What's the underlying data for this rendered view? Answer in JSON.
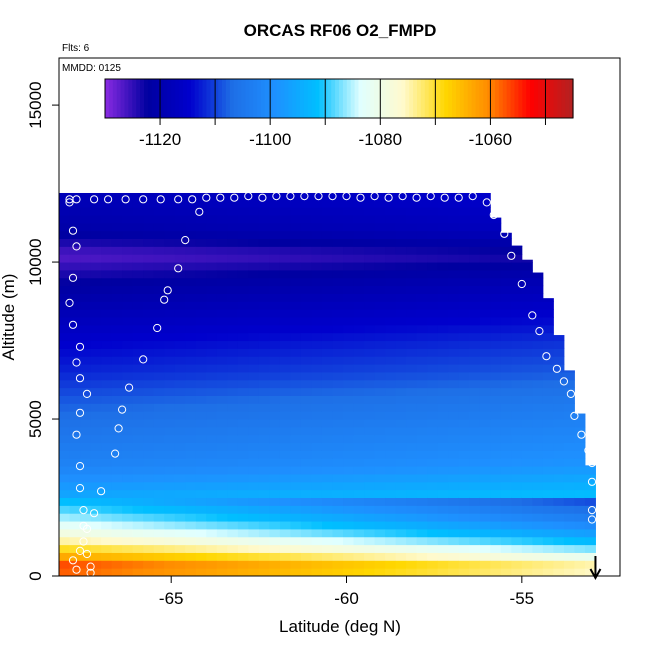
{
  "chart_data": {
    "type": "heatmap",
    "title": "ORCAS RF06 O2_FMPD",
    "flights_note": "Flts: 6",
    "date_note": "MMDD: 0125",
    "xlabel": "Latitude (deg N)",
    "ylabel": "Altitude (m)",
    "xlim": [
      -68.2,
      -52.2
    ],
    "ylim": [
      0,
      16500
    ],
    "x_ticks": [
      -65,
      -60,
      -55
    ],
    "x_tick_labels": [
      "-65",
      "-60",
      "-55"
    ],
    "y_ticks": [
      0,
      5000,
      10000,
      15000
    ],
    "y_tick_labels": [
      "0",
      "5000",
      "10000",
      "15000"
    ],
    "colorbar": {
      "ticks": [
        -1120,
        -1100,
        -1080,
        -1060
      ],
      "tick_labels": [
        "-1120",
        "-1100",
        "-1080",
        "-1060"
      ],
      "range": [
        -1130,
        -1045
      ],
      "colors": [
        "#8a2be2",
        "#0000a0",
        "#0000cd",
        "#1e6fe6",
        "#1e90ff",
        "#00bfff",
        "#e0ffff",
        "#fffacd",
        "#ffd700",
        "#ff8c00",
        "#ff0000",
        "#b22222"
      ]
    },
    "profile_ceiling": [
      [
        -68.0,
        12200
      ],
      [
        -56.0,
        12200
      ],
      [
        -55.8,
        11500
      ],
      [
        -55.5,
        11000
      ],
      [
        -55.2,
        10600
      ],
      [
        -54.8,
        10000
      ],
      [
        -54.5,
        9600
      ],
      [
        -54.2,
        8700
      ],
      [
        -54.0,
        7900
      ],
      [
        -53.8,
        7000
      ],
      [
        -53.6,
        6400
      ],
      [
        -53.4,
        5400
      ],
      [
        -53.2,
        4500
      ],
      [
        -53.0,
        3200
      ],
      [
        -52.9,
        0
      ]
    ],
    "altitude_profile": [
      [
        0,
        -1060
      ],
      [
        300,
        -1055
      ],
      [
        600,
        -1063
      ],
      [
        900,
        -1070
      ],
      [
        1300,
        -1078
      ],
      [
        1800,
        -1085
      ],
      [
        2500,
        -1093
      ],
      [
        3500,
        -1100
      ],
      [
        4500,
        -1103
      ],
      [
        5500,
        -1106
      ],
      [
        6500,
        -1110
      ],
      [
        7500,
        -1113
      ],
      [
        8500,
        -1117
      ],
      [
        9500,
        -1121
      ],
      [
        10200,
        -1125
      ],
      [
        11000,
        -1119
      ],
      [
        12200,
        -1116
      ]
    ],
    "flight_track": [
      [
        -67.7,
        200
      ],
      [
        -67.8,
        500
      ],
      [
        -67.6,
        800
      ],
      [
        -67.5,
        1100
      ],
      [
        -67.4,
        1500
      ],
      [
        -67.2,
        2000
      ],
      [
        -67.0,
        2700
      ],
      [
        -66.6,
        3900
      ],
      [
        -66.5,
        4700
      ],
      [
        -66.4,
        5300
      ],
      [
        -66.2,
        6000
      ],
      [
        -65.8,
        6900
      ],
      [
        -65.4,
        7900
      ],
      [
        -65.2,
        8800
      ],
      [
        -65.1,
        9100
      ],
      [
        -64.8,
        9800
      ],
      [
        -64.6,
        10700
      ],
      [
        -64.2,
        11600
      ],
      [
        -67.9,
        11900
      ],
      [
        -67.7,
        12000
      ],
      [
        -67.2,
        12000
      ],
      [
        -66.8,
        12000
      ],
      [
        -66.3,
        12000
      ],
      [
        -65.8,
        12000
      ],
      [
        -65.3,
        12000
      ],
      [
        -64.8,
        12000
      ],
      [
        -64.4,
        12000
      ],
      [
        -64.0,
        12050
      ],
      [
        -63.6,
        12050
      ],
      [
        -63.2,
        12050
      ],
      [
        -62.8,
        12100
      ],
      [
        -62.4,
        12050
      ],
      [
        -62.0,
        12100
      ],
      [
        -61.6,
        12100
      ],
      [
        -61.2,
        12100
      ],
      [
        -60.8,
        12100
      ],
      [
        -60.4,
        12100
      ],
      [
        -60.0,
        12100
      ],
      [
        -59.6,
        12050
      ],
      [
        -59.2,
        12100
      ],
      [
        -58.8,
        12050
      ],
      [
        -58.4,
        12100
      ],
      [
        -58.0,
        12050
      ],
      [
        -57.6,
        12100
      ],
      [
        -57.2,
        12050
      ],
      [
        -56.8,
        12050
      ],
      [
        -56.4,
        12100
      ],
      [
        -56.0,
        11900
      ],
      [
        -55.8,
        11500
      ],
      [
        -55.5,
        10900
      ],
      [
        -55.3,
        10200
      ],
      [
        -55.0,
        9300
      ],
      [
        -54.7,
        8300
      ],
      [
        -54.5,
        7800
      ],
      [
        -54.3,
        7000
      ],
      [
        -54.0,
        6600
      ],
      [
        -53.8,
        6200
      ],
      [
        -53.6,
        5800
      ],
      [
        -53.5,
        5100
      ],
      [
        -53.3,
        4500
      ],
      [
        -53.1,
        4000
      ],
      [
        -53.0,
        3600
      ],
      [
        -53.0,
        3000
      ],
      [
        -53.0,
        2100
      ],
      [
        -53.0,
        1800
      ],
      [
        -67.9,
        12000
      ],
      [
        -67.8,
        11000
      ],
      [
        -67.7,
        10500
      ],
      [
        -67.8,
        9500
      ],
      [
        -67.9,
        8700
      ],
      [
        -67.8,
        8000
      ],
      [
        -67.6,
        7300
      ],
      [
        -67.7,
        6800
      ],
      [
        -67.6,
        6300
      ],
      [
        -67.4,
        5800
      ],
      [
        -67.6,
        5200
      ],
      [
        -67.7,
        4500
      ],
      [
        -67.6,
        3500
      ],
      [
        -67.6,
        2800
      ],
      [
        -67.5,
        2100
      ],
      [
        -67.5,
        1600
      ],
      [
        -67.4,
        700
      ],
      [
        -67.3,
        300
      ],
      [
        -67.3,
        100
      ]
    ],
    "arrow_latitude": -52.9,
    "grid": false
  }
}
